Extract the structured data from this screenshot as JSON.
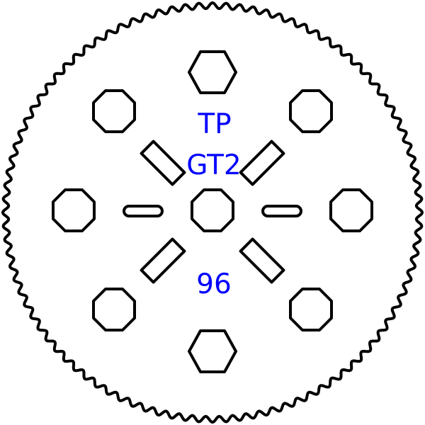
{
  "drawing": {
    "labels": {
      "line1": "TP",
      "line2": "GT2",
      "line3": "96"
    },
    "tooth_count": 96,
    "colors": {
      "outline": "#000000",
      "text": "#0000ff",
      "background": "#ffffff"
    }
  }
}
